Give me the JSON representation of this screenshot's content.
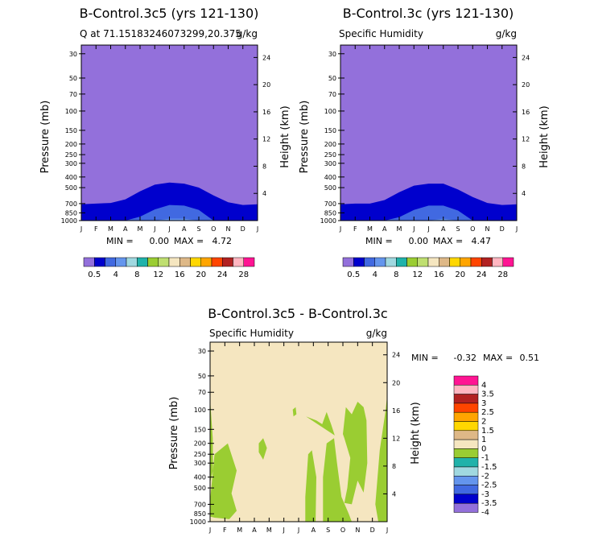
{
  "colors": {
    "background": "#ffffff",
    "frame": "#000000",
    "scale": [
      "#9370db",
      "#0000cd",
      "#4169e1",
      "#6495ed",
      "#a0d8e0",
      "#20b2aa",
      "#9acd32",
      "#bfdf70",
      "#f5e6c0",
      "#deb887",
      "#ffd700",
      "#ffa500",
      "#ff4500",
      "#b22222",
      "#ffb6c1",
      "#ff1493"
    ],
    "diff_scale": [
      "#9370db",
      "#0000cd",
      "#4169e1",
      "#6495ed",
      "#a0d8e0",
      "#20b2aa",
      "#9acd32",
      "#f5e6c0",
      "#deb887",
      "#ffd700",
      "#ffa500",
      "#ff4500",
      "#b22222",
      "#ffb6c1",
      "#ff1493"
    ]
  },
  "chart_data": [
    {
      "type": "heatmap",
      "title": "B-Control.3c5 (yrs 121-130)",
      "subtitle_left": "Q at 71.15183246073299,20.375",
      "subtitle_right": "g/kg",
      "ylabel": "Pressure (mb)",
      "y2label": "Height (km)",
      "x_ticks": [
        "J",
        "F",
        "M",
        "A",
        "M",
        "J",
        "J",
        "A",
        "S",
        "O",
        "N",
        "D",
        "J"
      ],
      "y_ticks": [
        "30",
        "50",
        "70",
        "100",
        "150",
        "200",
        "250",
        "300",
        "400",
        "500",
        "700",
        "850",
        "1000"
      ],
      "y2_ticks": [
        "24",
        "20",
        "16",
        "12",
        "8",
        "4"
      ],
      "stats": {
        "min_label": "MIN =",
        "min": "0.00",
        "max_label": "MAX =",
        "max": "4.72"
      },
      "layers": [
        {
          "level": "0-0.5",
          "months": [
            0,
            1,
            2,
            3,
            4,
            5,
            6,
            7,
            8,
            9,
            10,
            11,
            12
          ],
          "top_mb": [
            710,
            700,
            690,
            640,
            540,
            470,
            450,
            460,
            500,
            590,
            680,
            720,
            710
          ]
        },
        {
          "level": "0.5-4",
          "months": [
            3,
            4,
            5,
            6,
            7,
            8,
            9
          ],
          "top_mb": [
            1000,
            920,
            790,
            720,
            730,
            800,
            1000
          ]
        },
        {
          "level": "4-8",
          "months": [
            5,
            6,
            7,
            8
          ],
          "top_mb": [
            1000,
            960,
            960,
            1000
          ]
        }
      ]
    },
    {
      "type": "heatmap",
      "title": "B-Control.3c (yrs 121-130)",
      "subtitle_left": "Specific Humidity",
      "subtitle_right": "g/kg",
      "ylabel": "Pressure (mb)",
      "y2label": "Height (km)",
      "x_ticks": [
        "J",
        "F",
        "M",
        "A",
        "M",
        "J",
        "J",
        "A",
        "S",
        "O",
        "N",
        "D",
        "J"
      ],
      "y_ticks": [
        "30",
        "50",
        "70",
        "100",
        "150",
        "200",
        "250",
        "300",
        "400",
        "500",
        "700",
        "850",
        "1000"
      ],
      "y2_ticks": [
        "24",
        "20",
        "16",
        "12",
        "8",
        "4"
      ],
      "stats": {
        "min_label": "MIN =",
        "min": "0.00",
        "max_label": "MAX =",
        "max": "4.47"
      },
      "layers": [
        {
          "level": "0-0.5",
          "months": [
            0,
            1,
            2,
            3,
            4,
            5,
            6,
            7,
            8,
            9,
            10,
            11,
            12
          ],
          "top_mb": [
            710,
            700,
            700,
            650,
            550,
            480,
            460,
            460,
            520,
            610,
            690,
            720,
            710
          ]
        },
        {
          "level": "0.5-4",
          "months": [
            3,
            4,
            5,
            6,
            7,
            8,
            9
          ],
          "top_mb": [
            1000,
            930,
            800,
            730,
            730,
            810,
            1000
          ]
        },
        {
          "level": "4-8",
          "months": [
            6,
            7,
            8
          ],
          "top_mb": [
            1000,
            960,
            1000
          ]
        }
      ]
    },
    {
      "type": "heatmap",
      "title": "B-Control.3c5 - B-Control.3c",
      "subtitle_left": "Specific Humidity",
      "subtitle_right": "g/kg",
      "ylabel": "Pressure (mb)",
      "y2label": "Height (km)",
      "x_ticks": [
        "J",
        "F",
        "M",
        "A",
        "M",
        "J",
        "J",
        "A",
        "S",
        "O",
        "N",
        "D",
        "J"
      ],
      "y_ticks": [
        "30",
        "50",
        "70",
        "100",
        "150",
        "200",
        "250",
        "300",
        "400",
        "500",
        "700",
        "850",
        "1000"
      ],
      "y2_ticks": [
        "24",
        "20",
        "16",
        "12",
        "8",
        "4"
      ],
      "stats": {
        "min_label": "MIN =",
        "min": "-0.32",
        "max_label": "MAX =",
        "max": "0.51"
      },
      "background_level": "0 to 1",
      "regions_level": "-1 to 0",
      "regions": [
        [
          [
            0,
            80
          ],
          [
            0.18,
            180
          ],
          [
            0.2,
            350
          ],
          [
            0,
            450
          ]
        ],
        [
          [
            0,
            650
          ],
          [
            0.3,
            250
          ],
          [
            1.2,
            200
          ],
          [
            1.8,
            350
          ],
          [
            1.45,
            560
          ],
          [
            1.8,
            800
          ],
          [
            1.3,
            950
          ],
          [
            0.3,
            920
          ],
          [
            0,
            900
          ]
        ],
        [
          [
            3.3,
            200
          ],
          [
            3.6,
            180
          ],
          [
            3.85,
            220
          ],
          [
            3.6,
            280
          ],
          [
            3.3,
            240
          ]
        ],
        [
          [
            5.6,
            100
          ],
          [
            5.8,
            95
          ],
          [
            5.85,
            110
          ],
          [
            5.65,
            115
          ]
        ],
        [
          [
            6.45,
            1000
          ],
          [
            6.45,
            600
          ],
          [
            6.65,
            250
          ],
          [
            6.9,
            230
          ],
          [
            7.2,
            400
          ],
          [
            7.15,
            1000
          ]
        ],
        [
          [
            7.65,
            1000
          ],
          [
            7.65,
            400
          ],
          [
            7.9,
            200
          ],
          [
            8.4,
            180
          ],
          [
            8.6,
            300
          ],
          [
            8.9,
            600
          ],
          [
            9.4,
            850
          ],
          [
            9.6,
            1000
          ]
        ],
        [
          [
            6.5,
            115
          ],
          [
            7.2,
            125
          ],
          [
            7.6,
            135
          ],
          [
            7.9,
            105
          ],
          [
            8.2,
            135
          ],
          [
            8.45,
            170
          ]
        ],
        [
          [
            9.0,
            165
          ],
          [
            9.2,
            95
          ],
          [
            9.6,
            110
          ],
          [
            10.0,
            85
          ],
          [
            10.4,
            95
          ],
          [
            10.6,
            125
          ],
          [
            10.65,
            300
          ],
          [
            10.4,
            550
          ],
          [
            10.0,
            430
          ],
          [
            9.6,
            700
          ],
          [
            9.1,
            680
          ],
          [
            9.3,
            500
          ],
          [
            9.5,
            270
          ],
          [
            9.1,
            180
          ]
        ],
        [
          [
            11.4,
            1000
          ],
          [
            11.2,
            700
          ],
          [
            11.5,
            230
          ],
          [
            11.9,
            100
          ],
          [
            12,
            75
          ],
          [
            12,
            1000
          ]
        ]
      ]
    }
  ],
  "legend_top": {
    "labels": [
      "0.5",
      "4",
      "8",
      "12",
      "16",
      "20",
      "24",
      "28"
    ]
  },
  "legend_bottom": {
    "labels": [
      "4",
      "3.5",
      "3",
      "2.5",
      "2",
      "1.5",
      "1",
      "0",
      "-1",
      "-1.5",
      "-2",
      "-2.5",
      "-3",
      "-3.5",
      "-4"
    ]
  }
}
